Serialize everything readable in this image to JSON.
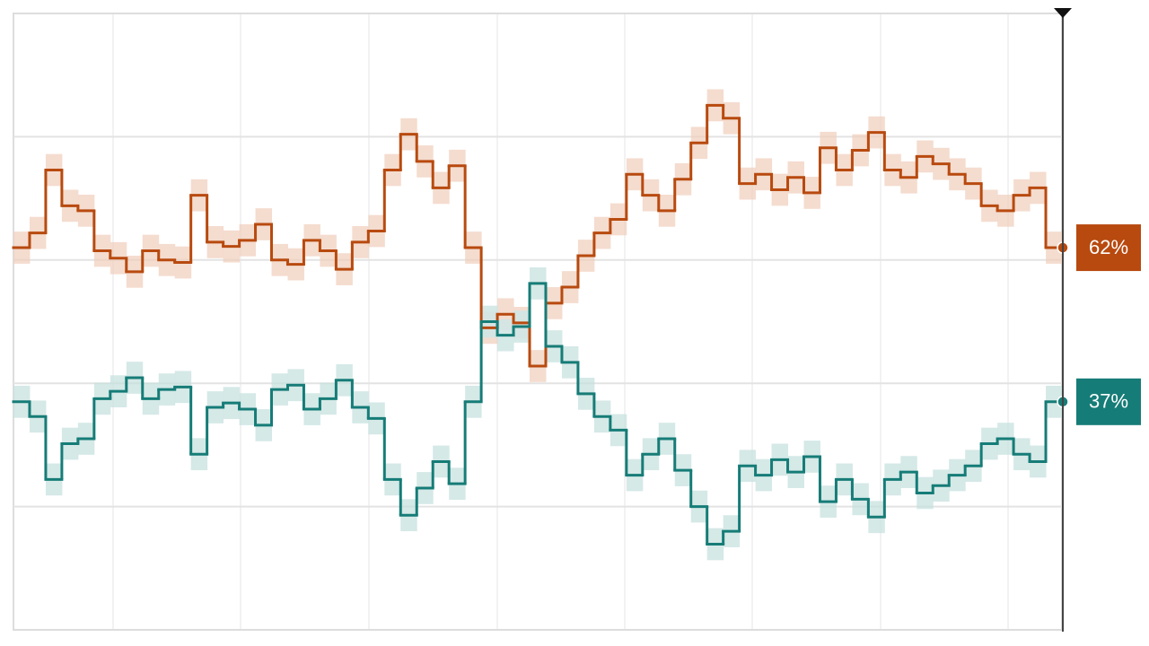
{
  "chart_data": {
    "type": "step",
    "ylim": [
      0,
      100
    ],
    "yticks": [
      20,
      40,
      60,
      80
    ],
    "grid": true,
    "series": [
      {
        "name": "orange",
        "color": "#b84a0f",
        "band_color": "#f1cfbd",
        "uncertainty": 2.6,
        "end_label": "62%",
        "values": [
          62,
          64.4,
          74.6,
          68.8,
          68,
          61.5,
          60.3,
          58.1,
          61.5,
          60,
          59.6,
          70.5,
          62.9,
          62.2,
          63.2,
          65.8,
          60,
          59.3,
          63.2,
          61.5,
          58.5,
          62.9,
          64.7,
          74.6,
          80.4,
          76,
          71.7,
          75.3,
          62,
          49,
          51.2,
          49.8,
          42.8,
          53,
          55.6,
          60.7,
          64.4,
          66.6,
          73.9,
          70.5,
          68,
          73.1,
          79,
          85.1,
          83,
          72.4,
          73.9,
          71.4,
          73.4,
          70.9,
          78.2,
          74.6,
          77.8,
          80.7,
          74.6,
          73.4,
          76.8,
          75.6,
          73.9,
          72.4,
          68.8,
          68,
          70.5,
          71.7,
          62
        ]
      },
      {
        "name": "teal",
        "color": "#167c77",
        "band_color": "#c5e1df",
        "uncertainty": 2.6,
        "end_label": "37%",
        "values": [
          37,
          34.6,
          24.4,
          30.2,
          31,
          37.5,
          38.7,
          40.9,
          37.5,
          39,
          39.4,
          28.5,
          36.1,
          36.8,
          35.8,
          33.2,
          39,
          39.7,
          35.8,
          37.5,
          40.5,
          36.1,
          34.3,
          24.4,
          18.6,
          23,
          27.3,
          23.7,
          37,
          50,
          47.8,
          49.2,
          56.2,
          46,
          43.4,
          38.3,
          34.6,
          32.4,
          25.1,
          28.5,
          31,
          25.9,
          20,
          13.9,
          16,
          26.6,
          25.1,
          27.6,
          25.6,
          28.1,
          20.8,
          24.4,
          21.2,
          18.3,
          24.4,
          25.6,
          22.2,
          23.4,
          25.1,
          26.6,
          30.2,
          31,
          28.5,
          27.3,
          37
        ]
      }
    ]
  }
}
